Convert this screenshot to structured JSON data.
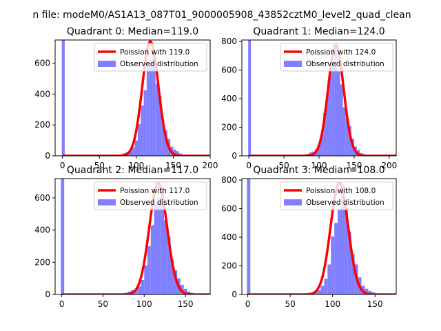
{
  "suptitle": "n file: modeM0/AS1A13_087T01_9000005908_43852cztM0_level2_quad_clean",
  "colors": {
    "bar": "#7f7fff",
    "curve": "#ff0000",
    "axis": "#000000"
  },
  "chart_data": [
    {
      "type": "bar",
      "title": "Quadrant 0: Median=119.0",
      "xlim": [
        -10,
        200
      ],
      "ylim": [
        0,
        750
      ],
      "xticks": [
        0,
        50,
        100,
        150,
        200
      ],
      "yticks": [
        0,
        200,
        400,
        600
      ],
      "legend": [
        "Poission with 119.0",
        "Observed distribution"
      ],
      "legend_placement": "upper-right",
      "mean": 119.0,
      "peak": 740,
      "sigma": 11.0,
      "spike": {
        "x": 0,
        "count": 750
      },
      "bin_width": 4,
      "bins": [
        [
          70,
          3
        ],
        [
          74,
          6
        ],
        [
          78,
          10
        ],
        [
          82,
          18
        ],
        [
          86,
          25
        ],
        [
          90,
          30
        ],
        [
          94,
          55
        ],
        [
          98,
          100
        ],
        [
          102,
          205
        ],
        [
          106,
          325
        ],
        [
          110,
          425
        ],
        [
          114,
          580
        ],
        [
          118,
          620
        ],
        [
          122,
          660
        ],
        [
          126,
          465
        ],
        [
          130,
          390
        ],
        [
          134,
          235
        ],
        [
          138,
          165
        ],
        [
          142,
          110
        ],
        [
          146,
          60
        ],
        [
          150,
          40
        ],
        [
          154,
          30
        ],
        [
          158,
          15
        ],
        [
          162,
          8
        ],
        [
          166,
          4
        ],
        [
          170,
          2
        ]
      ]
    },
    {
      "type": "bar",
      "title": "Quadrant 1: Median=124.0",
      "xlim": [
        -10,
        210
      ],
      "ylim": [
        0,
        810
      ],
      "xticks": [
        0,
        50,
        100,
        150,
        200
      ],
      "yticks": [
        0,
        200,
        400,
        600,
        800
      ],
      "legend": [
        "Poission with 124.0",
        "Observed distribution"
      ],
      "legend_placement": "upper-right",
      "mean": 124.0,
      "peak": 775,
      "sigma": 11.1,
      "spike": {
        "x": 0,
        "count": 810
      },
      "bin_width": 4,
      "bins": [
        [
          70,
          3
        ],
        [
          74,
          5
        ],
        [
          78,
          8
        ],
        [
          82,
          14
        ],
        [
          86,
          25
        ],
        [
          90,
          30
        ],
        [
          94,
          45
        ],
        [
          98,
          80
        ],
        [
          102,
          150
        ],
        [
          106,
          300
        ],
        [
          110,
          430
        ],
        [
          114,
          580
        ],
        [
          118,
          640
        ],
        [
          122,
          780
        ],
        [
          126,
          590
        ],
        [
          130,
          500
        ],
        [
          134,
          340
        ],
        [
          138,
          265
        ],
        [
          142,
          210
        ],
        [
          146,
          120
        ],
        [
          150,
          65
        ],
        [
          154,
          40
        ],
        [
          158,
          20
        ],
        [
          162,
          12
        ],
        [
          166,
          8
        ],
        [
          170,
          5
        ],
        [
          174,
          3
        ]
      ]
    },
    {
      "type": "bar",
      "title": "Quadrant 2: Median=117.0",
      "xlim": [
        -8,
        180
      ],
      "ylim": [
        0,
        720
      ],
      "xticks": [
        0,
        50,
        100,
        150
      ],
      "yticks": [
        0,
        200,
        400,
        600
      ],
      "legend": [
        "Poission with 117.0",
        "Observed distribution"
      ],
      "legend_placement": "upper-right",
      "mean": 117.0,
      "peak": 690,
      "sigma": 10.8,
      "spike": {
        "x": 0,
        "count": 720
      },
      "bin_width": 4,
      "bins": [
        [
          72,
          5
        ],
        [
          76,
          10
        ],
        [
          80,
          18
        ],
        [
          84,
          28
        ],
        [
          88,
          30
        ],
        [
          92,
          50
        ],
        [
          96,
          90
        ],
        [
          100,
          180
        ],
        [
          104,
          300
        ],
        [
          108,
          430
        ],
        [
          112,
          560
        ],
        [
          116,
          600
        ],
        [
          120,
          640
        ],
        [
          124,
          460
        ],
        [
          128,
          360
        ],
        [
          132,
          215
        ],
        [
          136,
          150
        ],
        [
          140,
          100
        ],
        [
          144,
          60
        ],
        [
          148,
          35
        ],
        [
          152,
          18
        ],
        [
          156,
          10
        ],
        [
          160,
          5
        ],
        [
          164,
          3
        ]
      ]
    },
    {
      "type": "bar",
      "title": "Quadrant 3: Median=108.0",
      "xlim": [
        -7,
        175
      ],
      "ylim": [
        0,
        810
      ],
      "xticks": [
        0,
        50,
        100,
        150
      ],
      "yticks": [
        0,
        200,
        400,
        600,
        800
      ],
      "legend": [
        "Poission with 108.0",
        "Observed distribution"
      ],
      "legend_placement": "upper-right",
      "mean": 108.0,
      "peak": 780,
      "sigma": 10.4,
      "spike": {
        "x": 0,
        "count": 810
      },
      "bin_width": 4,
      "bins": [
        [
          66,
          3
        ],
        [
          70,
          5
        ],
        [
          74,
          10
        ],
        [
          78,
          20
        ],
        [
          82,
          30
        ],
        [
          86,
          60
        ],
        [
          90,
          110
        ],
        [
          94,
          210
        ],
        [
          98,
          405
        ],
        [
          102,
          500
        ],
        [
          106,
          590
        ],
        [
          110,
          770
        ],
        [
          114,
          600
        ],
        [
          118,
          440
        ],
        [
          122,
          280
        ],
        [
          126,
          210
        ],
        [
          130,
          120
        ],
        [
          134,
          60
        ],
        [
          138,
          40
        ],
        [
          142,
          25
        ],
        [
          146,
          15
        ],
        [
          150,
          8
        ],
        [
          154,
          5
        ],
        [
          158,
          3
        ]
      ]
    }
  ]
}
